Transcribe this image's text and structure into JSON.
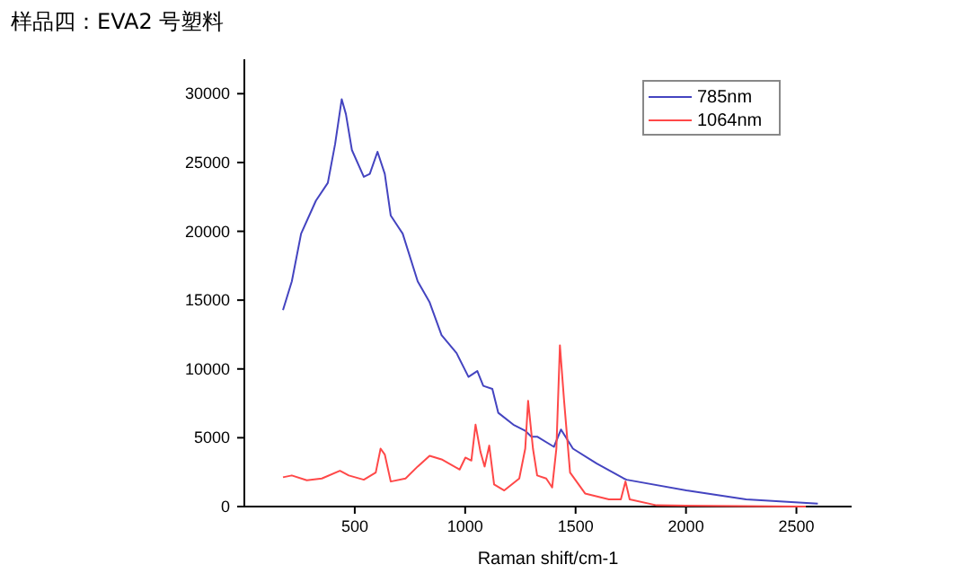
{
  "chart_data": {
    "type": "line",
    "title": "样品四：EVA2 号塑料",
    "xlabel": "Raman shift/cm-1",
    "xlim": [
      0,
      2750
    ],
    "xticks": [
      500,
      1000,
      1500,
      2000,
      2500
    ],
    "ylim": [
      0,
      32500
    ],
    "yticks": [
      0,
      5000,
      10000,
      15000,
      20000,
      25000,
      30000
    ],
    "grid": false,
    "legend": "top right",
    "marker": "none",
    "line_style": "solid",
    "series": [
      {
        "name": "785nm",
        "color": "#4444c0",
        "x": [
          175,
          215,
          257,
          324,
          378,
          411,
          441,
          460,
          487,
          541,
          568,
          603,
          636,
          663,
          717,
          785,
          839,
          893,
          961,
          1015,
          1055,
          1082,
          1123,
          1150,
          1218,
          1272,
          1299,
          1326,
          1402,
          1434,
          1488,
          1596,
          1718,
          1731,
          2002,
          2272,
          2597
        ],
        "values": [
          14280,
          16360,
          19830,
          22220,
          23520,
          26340,
          29600,
          28510,
          25910,
          23960,
          24170,
          25780,
          24170,
          21140,
          19830,
          16360,
          14840,
          12460,
          11150,
          9420,
          9850,
          8770,
          8550,
          6810,
          5950,
          5510,
          5080,
          5080,
          4340,
          5600,
          4210,
          3120,
          2040,
          1950,
          1170,
          520,
          217
        ]
      },
      {
        "name": "1064nm",
        "color": "#ff4848",
        "x": [
          175,
          215,
          283,
          351,
          433,
          473,
          541,
          595,
          617,
          636,
          663,
          730,
          785,
          839,
          893,
          975,
          1001,
          1028,
          1047,
          1069,
          1088,
          1109,
          1131,
          1177,
          1245,
          1272,
          1285,
          1307,
          1326,
          1367,
          1394,
          1413,
          1429,
          1448,
          1475,
          1543,
          1651,
          1705,
          1726,
          1745,
          1867,
          2543
        ],
        "values": [
          2130,
          2260,
          1910,
          2040,
          2600,
          2260,
          1950,
          2470,
          4210,
          3780,
          1820,
          2040,
          2910,
          3690,
          3430,
          2690,
          3560,
          3340,
          5950,
          3990,
          2910,
          4430,
          1610,
          1170,
          2040,
          4210,
          7680,
          4210,
          2260,
          2040,
          1390,
          4210,
          11720,
          7680,
          2470,
          950,
          520,
          520,
          1820,
          520,
          90,
          0
        ]
      }
    ]
  }
}
